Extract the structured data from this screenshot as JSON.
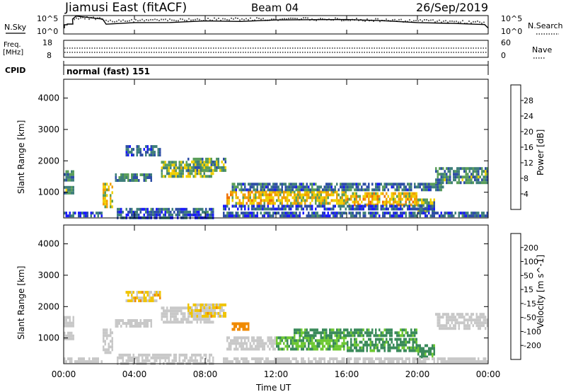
{
  "header": {
    "title": "Jiamusi East (fitACF)",
    "beam": "Beam 04",
    "date": "26/Sep/2019"
  },
  "top_panels": {
    "nsky_label": "N.Sky",
    "nsky_ticks": [
      "10^5",
      "10^0"
    ],
    "nsearch_label": "N.Search",
    "freq_label": "Freq.",
    "freq_unit": "[MHz]",
    "freq_ticks": [
      "18",
      "8"
    ],
    "nave_label": "Nave",
    "nave_ticks": [
      "60",
      "0"
    ],
    "cpid_label": "CPID",
    "cpid_value": "normal (fast) 151"
  },
  "colors": {
    "power_scale": [
      "#1a1aff",
      "#2e4ea6",
      "#3f7f7a",
      "#5a9e5a",
      "#f0d000",
      "#f0a000",
      "#f07000",
      "#f04000",
      "#ff0000"
    ],
    "velocity_scale": [
      "#1a1acc",
      "#2e4ea6",
      "#3a8a5a",
      "#6ec832",
      "#c8c8c8",
      "#f0c400",
      "#f08a00",
      "#f05000",
      "#ff0000"
    ],
    "ground_scatter": "#b4b4b4"
  },
  "chart_data": [
    {
      "type": "heatmap",
      "name": "power",
      "ylabel": "Slant Range [km]",
      "xlabel": "Time UT",
      "x_ticks": [
        "00:00",
        "04:00",
        "08:00",
        "12:00",
        "16:00",
        "20:00",
        "00:00"
      ],
      "y_ticks": [
        1000,
        2000,
        3000,
        4000
      ],
      "ylim": [
        180,
        4600
      ],
      "xlim_hours": [
        0,
        24
      ],
      "colorbar_label": "Power [dB]",
      "colorbar_ticks": [
        4,
        8,
        12,
        16,
        20,
        24,
        28
      ],
      "colorbar_range": [
        0,
        32
      ],
      "regions": [
        {
          "t": [
            0.0,
            0.6
          ],
          "r": [
            1350,
            1700
          ],
          "v": 9
        },
        {
          "t": [
            0.0,
            0.6
          ],
          "r": [
            950,
            1200
          ],
          "v": 11
        },
        {
          "t": [
            0.0,
            2.2
          ],
          "r": [
            200,
            380
          ],
          "v": 6
        },
        {
          "t": [
            2.2,
            2.8
          ],
          "r": [
            500,
            1300
          ],
          "v": 16
        },
        {
          "t": [
            2.9,
            5.0
          ],
          "r": [
            1400,
            1600
          ],
          "v": 9
        },
        {
          "t": [
            3.5,
            5.5
          ],
          "r": [
            2200,
            2500
          ],
          "v": 6
        },
        {
          "t": [
            5.5,
            8.5
          ],
          "r": [
            1500,
            2000
          ],
          "v": 13
        },
        {
          "t": [
            7.0,
            9.2
          ],
          "r": [
            1700,
            2100
          ],
          "v": 11
        },
        {
          "t": [
            3.0,
            8.5
          ],
          "r": [
            200,
            500
          ],
          "v": 6
        },
        {
          "t": [
            9.2,
            12.0
          ],
          "r": [
            600,
            1050
          ],
          "v": 18
        },
        {
          "t": [
            12.0,
            16.0
          ],
          "r": [
            600,
            1050
          ],
          "v": 16
        },
        {
          "t": [
            16.0,
            20.0
          ],
          "r": [
            550,
            1000
          ],
          "v": 18
        },
        {
          "t": [
            20.0,
            21.0
          ],
          "r": [
            400,
            800
          ],
          "v": 12
        },
        {
          "t": [
            9.5,
            21.5
          ],
          "r": [
            1050,
            1300
          ],
          "v": 8
        },
        {
          "t": [
            9.0,
            21.0
          ],
          "r": [
            450,
            600
          ],
          "v": 5
        },
        {
          "t": [
            9.0,
            24.0
          ],
          "r": [
            200,
            380
          ],
          "v": 6
        },
        {
          "t": [
            21.0,
            24.0
          ],
          "r": [
            1300,
            1800
          ],
          "v": 10
        }
      ]
    },
    {
      "type": "heatmap",
      "name": "velocity",
      "ylabel": "Slant Range [km]",
      "xlabel": "Time UT",
      "x_ticks": [
        "00:00",
        "04:00",
        "08:00",
        "12:00",
        "16:00",
        "20:00",
        "00:00"
      ],
      "y_ticks": [
        1000,
        2000,
        3000,
        4000
      ],
      "ylim": [
        180,
        4600
      ],
      "xlim_hours": [
        0,
        24
      ],
      "colorbar_label": "Velocity [m s^-1]",
      "colorbar_ticks": [
        200,
        100,
        50,
        15,
        -15,
        -50,
        -100,
        -200
      ],
      "colorbar_range": [
        -250,
        250
      ],
      "regions": [
        {
          "t": [
            0.0,
            0.6
          ],
          "r": [
            1350,
            1700
          ],
          "v": 0
        },
        {
          "t": [
            0.0,
            0.6
          ],
          "r": [
            950,
            1200
          ],
          "v": 0
        },
        {
          "t": [
            0.0,
            2.2
          ],
          "r": [
            200,
            380
          ],
          "v": 0
        },
        {
          "t": [
            2.2,
            2.8
          ],
          "r": [
            500,
            1300
          ],
          "v": 0
        },
        {
          "t": [
            2.9,
            5.0
          ],
          "r": [
            1400,
            1600
          ],
          "v": 0
        },
        {
          "t": [
            3.5,
            5.5
          ],
          "r": [
            2200,
            2500
          ],
          "v": -20
        },
        {
          "t": [
            5.5,
            8.5
          ],
          "r": [
            1500,
            2000
          ],
          "v": 0
        },
        {
          "t": [
            7.0,
            9.2
          ],
          "r": [
            1700,
            2100
          ],
          "v": -20
        },
        {
          "t": [
            3.0,
            8.5
          ],
          "r": [
            200,
            500
          ],
          "v": 0
        },
        {
          "t": [
            9.2,
            12.0
          ],
          "r": [
            600,
            1050
          ],
          "v": 0
        },
        {
          "t": [
            9.5,
            10.5
          ],
          "r": [
            1300,
            1500
          ],
          "v": -60
        },
        {
          "t": [
            12.0,
            16.0
          ],
          "r": [
            600,
            1050
          ],
          "v": 30
        },
        {
          "t": [
            13.0,
            20.0
          ],
          "r": [
            1050,
            1300
          ],
          "v": 40
        },
        {
          "t": [
            16.0,
            20.0
          ],
          "r": [
            550,
            1000
          ],
          "v": 40
        },
        {
          "t": [
            20.0,
            21.0
          ],
          "r": [
            400,
            800
          ],
          "v": 40
        },
        {
          "t": [
            9.0,
            24.0
          ],
          "r": [
            200,
            380
          ],
          "v": 0
        },
        {
          "t": [
            21.0,
            24.0
          ],
          "r": [
            1300,
            1800
          ],
          "v": 0
        }
      ]
    }
  ]
}
